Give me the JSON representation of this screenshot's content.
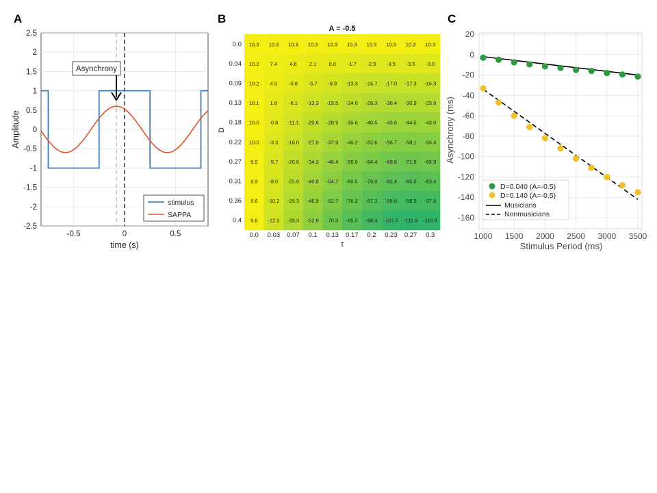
{
  "panels": {
    "a": "A",
    "b": "B",
    "c": "C"
  },
  "chart_data": [
    {
      "type": "line",
      "xlabel": "time (s)",
      "ylabel": "Amplitude",
      "xlim": [
        -0.82,
        0.82
      ],
      "ylim": [
        -2.5,
        2.5
      ],
      "xticks": [
        -0.5,
        0,
        0.5
      ],
      "yticks": [
        -2.5,
        -2,
        -1.5,
        -1,
        -0.5,
        0,
        0.5,
        1,
        1.5,
        2,
        2.5
      ],
      "grid": true,
      "legend": "bottom-right",
      "annotation": "Asynchrony",
      "vlines": [
        -0.08,
        0
      ],
      "series": [
        {
          "name": "stimulus",
          "color": "#2f6fb0",
          "x": [
            -0.82,
            -0.75,
            -0.75,
            -0.25,
            -0.25,
            0.25,
            0.25,
            0.75,
            0.75,
            0.82
          ],
          "y": [
            1,
            1,
            -1,
            -1,
            1,
            1,
            -1,
            -1,
            1,
            1
          ]
        },
        {
          "name": "SAPPA",
          "color": "#e05228",
          "function": "0.6*cos(2*pi*(t+0.08))",
          "amplitude": 0.6,
          "period": 1.0,
          "phase": -0.08
        }
      ]
    },
    {
      "type": "heatmap",
      "title": "A = -0.5",
      "xlabel": "τ",
      "ylabel": "D",
      "x": [
        "0.0",
        "0.03",
        "0.07",
        "0.1",
        "0.13",
        "0.17",
        "0.2",
        "0.23",
        "0.27",
        "0.3"
      ],
      "y": [
        "0.0",
        "0.04",
        "0.09",
        "0.13",
        "0.18",
        "0.22",
        "0.27",
        "0.31",
        "0.36",
        "0.4"
      ],
      "values": [
        [
          "10.3",
          "10.3",
          "10.3",
          "10.3",
          "10.3",
          "10.3",
          "10.3",
          "10.3",
          "10.3",
          "10.3"
        ],
        [
          "10.2",
          "7.4",
          "4.6",
          "2.1",
          "0.0",
          "-1.7",
          "-2.9",
          "-3.5",
          "-3.5",
          "-3.0"
        ],
        [
          "10.2",
          "4.5",
          "-0.8",
          "-5.7",
          "-9.9",
          "-13.3",
          "-15.7",
          "-17.0",
          "-17.3",
          "-16.3"
        ],
        [
          "10.1",
          "1.8",
          "-6.1",
          "-13.3",
          "-19.5",
          "-24.6",
          "-28.3",
          "-30.4",
          "-30.9",
          "-29.6"
        ],
        [
          "10.0",
          "-0.8",
          "-11.1",
          "-20.6",
          "-28.9",
          "-35.6",
          "-40.5",
          "-43.6",
          "-44.5",
          "-43.0"
        ],
        [
          "10.0",
          "-3.3",
          "-16.0",
          "-27.6",
          "-37.9",
          "-46.2",
          "-52.6",
          "-56.7",
          "-58.1",
          "-56.4"
        ],
        [
          "9.9",
          "-5.7",
          "-20.6",
          "-34.3",
          "-46.4",
          "-56.6",
          "-64.4",
          "-69.6",
          "-71.6",
          "-69.9"
        ],
        [
          "9.9",
          "-8.0",
          "-25.0",
          "-40.8",
          "-54.7",
          "-66.5",
          "-76.0",
          "-82.4",
          "-85.0",
          "-83.4"
        ],
        [
          "9.8",
          "-10.2",
          "-29.3",
          "-46.9",
          "-62.7",
          "-76.2",
          "-87.3",
          "-95.0",
          "-98.5",
          "-97.0"
        ],
        [
          "9.8",
          "-12.3",
          "-33.3",
          "-52.8",
          "-70.3",
          "-85.5",
          "-98.4",
          "-107.5",
          "-111.9",
          "-110.8"
        ]
      ],
      "colormap": [
        "#f5ee12",
        "#2db36a"
      ]
    },
    {
      "type": "scatter",
      "xlabel": "Stimulus Period (ms)",
      "ylabel": "Asynchrony (ms)",
      "xlim": [
        1000,
        3500
      ],
      "ylim": [
        -160,
        20
      ],
      "xticks": [
        1000,
        1500,
        2000,
        2500,
        3000,
        3500
      ],
      "yticks": [
        -160,
        -140,
        -120,
        -100,
        -80,
        -60,
        -40,
        -20,
        0,
        20
      ],
      "grid": true,
      "legend": "bottom-left",
      "series": [
        {
          "name": "D=0.040 (A=-0.5)",
          "kind": "points",
          "color": "#2f9a41",
          "x": [
            1000,
            1250,
            1500,
            1750,
            2000,
            2250,
            2500,
            2750,
            3000,
            3250,
            3500
          ],
          "y": [
            -3,
            -5,
            -7.5,
            -9.5,
            -11.5,
            -13,
            -15,
            -16,
            -18,
            -19.5,
            -21.5
          ]
        },
        {
          "name": "D=0.140 (A=-0.5)",
          "kind": "points",
          "color": "#f1c12c",
          "x": [
            1000,
            1250,
            1500,
            1750,
            2000,
            2250,
            2500,
            2750,
            3000,
            3250,
            3500
          ],
          "y": [
            -33,
            -47,
            -60,
            -71,
            -82,
            -92,
            -102,
            -111,
            -120,
            -128,
            -135
          ]
        },
        {
          "name": "Musicians",
          "kind": "line",
          "color": "#000000",
          "dash": "solid",
          "x": [
            1000,
            3500
          ],
          "y": [
            -2,
            -20
          ]
        },
        {
          "name": "Nonmusicians",
          "kind": "line",
          "color": "#000000",
          "dash": "dashed",
          "x": [
            1000,
            3500
          ],
          "y": [
            -34,
            -142
          ]
        }
      ]
    }
  ]
}
